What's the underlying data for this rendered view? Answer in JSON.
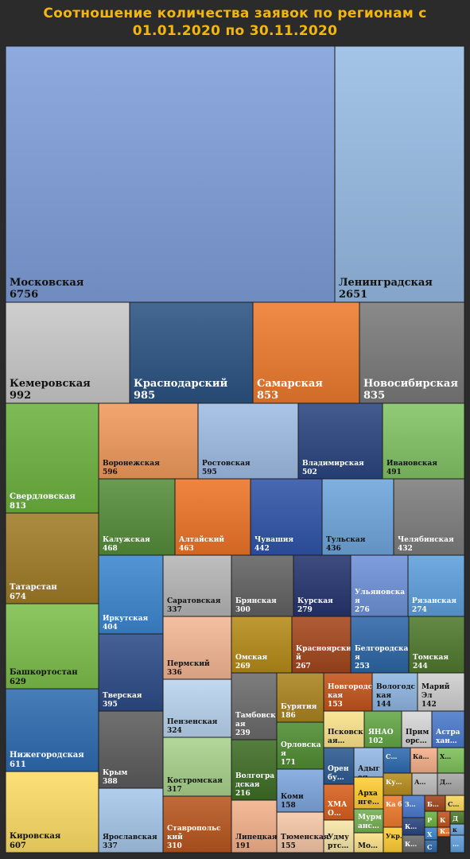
{
  "title_line1": "Соотношение количества заявок по регионам с",
  "title_line2": "01.01.2020 по 30.11.2020",
  "chart_data": {
    "type": "treemap",
    "regions": [
      {
        "name": "Московская",
        "value": 6756,
        "color": "#7f9ed9"
      },
      {
        "name": "Ленинградская",
        "value": 2651,
        "color": "#96bce4"
      },
      {
        "name": "Кемеровская",
        "value": 992,
        "color": "#c9c9c9"
      },
      {
        "name": "Краснодарский",
        "value": 985,
        "color": "#2a5382"
      },
      {
        "name": "Самарская",
        "value": 853,
        "color": "#ee7b2e"
      },
      {
        "name": "Новосибирская",
        "value": 835,
        "color": "#7a7a7a"
      },
      {
        "name": "Свердловская",
        "value": 813,
        "color": "#6db23f"
      },
      {
        "name": "Воронежская",
        "value": 596,
        "color": "#f19a5c"
      },
      {
        "name": "Ростовская",
        "value": 595,
        "color": "#9fbde6"
      },
      {
        "name": "Владимирская",
        "value": 502,
        "color": "#2a4580"
      },
      {
        "name": "Ивановская",
        "value": 491,
        "color": "#83c465"
      },
      {
        "name": "Татарстан",
        "value": 674,
        "color": "#a07c27"
      },
      {
        "name": "Калужская",
        "value": 468,
        "color": "#558d3a"
      },
      {
        "name": "Алтайский",
        "value": 463,
        "color": "#ee7428"
      },
      {
        "name": "Чувашия",
        "value": 442,
        "color": "#2f54a8"
      },
      {
        "name": "Тульская",
        "value": 436,
        "color": "#6ea6dc"
      },
      {
        "name": "Челябинская",
        "value": 432,
        "color": "#7d7d7d"
      },
      {
        "name": "Башкортостан",
        "value": 629,
        "color": "#7dbf4c"
      },
      {
        "name": "Иркутская",
        "value": 404,
        "color": "#3c86cf"
      },
      {
        "name": "Саратовская",
        "value": 337,
        "color": "#b6b6b6"
      },
      {
        "name": "Брянская",
        "value": 300,
        "color": "#626262"
      },
      {
        "name": "Курская",
        "value": 279,
        "color": "#24346e"
      },
      {
        "name": "Ульяновская",
        "value": 276,
        "color": "#6e91d8"
      },
      {
        "name": "Рязанская",
        "value": 274,
        "color": "#5e9fdc"
      },
      {
        "name": "Нижегородская",
        "value": 611,
        "color": "#2e6bb0"
      },
      {
        "name": "Пермский",
        "value": 336,
        "color": "#f4b694"
      },
      {
        "name": "Омская",
        "value": 269,
        "color": "#b68b18"
      },
      {
        "name": "Красноярский",
        "value": 267,
        "color": "#a4461c"
      },
      {
        "name": "Белгородская",
        "value": 253,
        "color": "#2e66a6"
      },
      {
        "name": "Томская",
        "value": 244,
        "color": "#4f7a2e"
      },
      {
        "name": "Тверская",
        "value": 395,
        "color": "#2c4b86"
      },
      {
        "name": "Тамбовская",
        "value": 239,
        "color": "#6b6b6b"
      },
      {
        "name": "Бурятия",
        "value": 186,
        "color": "#aa8420"
      },
      {
        "name": "Новгородская",
        "value": 153,
        "color": "#c4531b"
      },
      {
        "name": "Вологодская",
        "value": 144,
        "color": "#8fb6e2"
      },
      {
        "name": "Марий Эл",
        "value": 142,
        "color": "#cfcfcf"
      },
      {
        "name": "Пензенская",
        "value": 324,
        "color": "#b9d5ef"
      },
      {
        "name": "Псковская",
        "value": null,
        "color": "#fbe48a"
      },
      {
        "name": "ЯНАО",
        "value": 102,
        "color": "#63a845"
      },
      {
        "name": "Приморский",
        "value": null,
        "color": "#d8d8d8"
      },
      {
        "name": "Астрахань",
        "value": null,
        "color": "#4a7acb"
      },
      {
        "name": "Крым",
        "value": 388,
        "color": "#5c5c5c"
      },
      {
        "name": "Орловская",
        "value": 171,
        "color": "#4f8d32"
      },
      {
        "name": "Оренбургская",
        "value": null,
        "color": "#2c5a92"
      },
      {
        "name": "Адыгея",
        "value": null,
        "color": "#93b9e6"
      },
      {
        "name": "Костромская",
        "value": 317,
        "color": "#a8d28c"
      },
      {
        "name": "Волгоградская",
        "value": 216,
        "color": "#3f6e25"
      },
      {
        "name": "Коми",
        "value": 158,
        "color": "#7ea6de"
      },
      {
        "name": "ХМАО",
        "value": null,
        "color": "#d9601f"
      },
      {
        "name": "Архангельская",
        "value": null,
        "color": "#ffcd33"
      },
      {
        "name": "Мурманская",
        "value": null,
        "color": "#76b050"
      },
      {
        "name": "Удмуртия",
        "value": null,
        "color": "#f8e7a8"
      },
      {
        "name": "Москва",
        "value": null,
        "color": "#fde28a"
      },
      {
        "name": "Ярославская",
        "value": 337,
        "color": "#a7c7ea"
      },
      {
        "name": "Ставропольский",
        "value": 310,
        "color": "#b8561f"
      },
      {
        "name": "Липецкая",
        "value": 191,
        "color": "#f4b18a"
      },
      {
        "name": "Тюменская",
        "value": 155,
        "color": "#f7c7a8"
      },
      {
        "name": "Кировская",
        "value": 607,
        "color": "#fddc66"
      }
    ],
    "small_tile_labels": [
      "С…",
      "Ка…",
      "Х…",
      "Ку…",
      "А…",
      "Д…",
      "Ка б…",
      "З…",
      "К…",
      "Б…",
      "С…",
      "Укр…",
      "К…",
      "К…",
      "Р",
      "К",
      "Д",
      "Х",
      "С",
      "к",
      "…"
    ]
  }
}
